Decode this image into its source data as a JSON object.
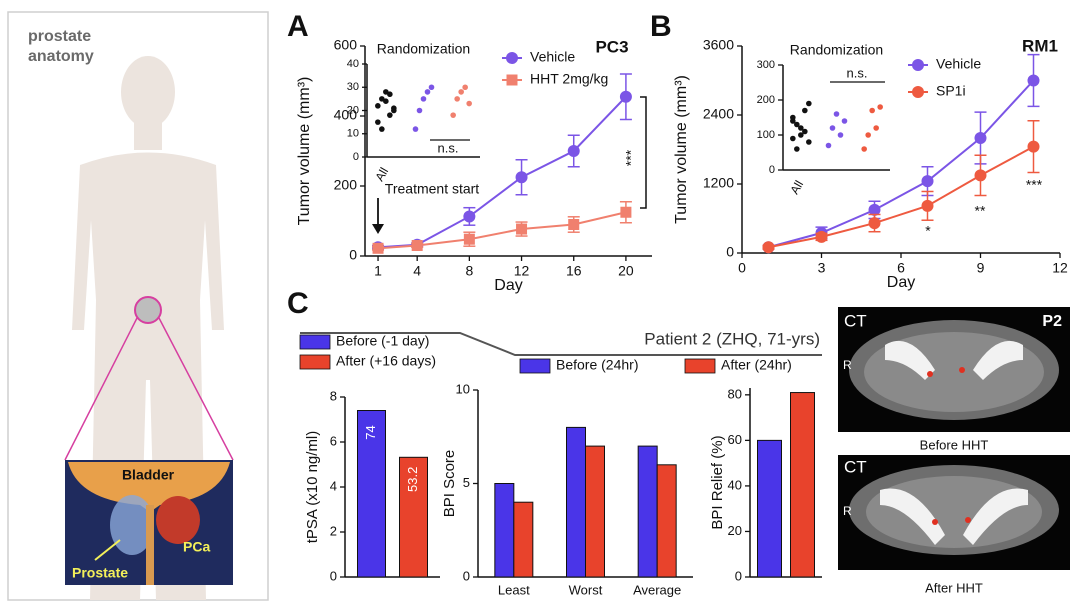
{
  "panel_letters": [
    "A",
    "B",
    "C"
  ],
  "anatomy": {
    "title": "prostate anatomy",
    "labels": [
      "Bladder",
      "Prostate",
      "PCa"
    ]
  },
  "panel_c": {
    "title": "Patient 2 (ZHQ, 71-yrs)"
  },
  "ct": {
    "labels": [
      "CT",
      "P2",
      "R",
      "CT",
      "R"
    ],
    "captions": [
      "Before HHT",
      "After HHT"
    ]
  },
  "chart_data": [
    {
      "type": "line",
      "xlabel": "Day",
      "ylabel": "Tumor volume (mm³)",
      "x": [
        1,
        4,
        8,
        12,
        16,
        20
      ],
      "xlim": [
        0,
        22
      ],
      "xticks": [
        1,
        4,
        8,
        12,
        16,
        20
      ],
      "ylim": [
        0,
        600
      ],
      "yticks": [
        0,
        200,
        400,
        600
      ],
      "series": [
        {
          "name": "Vehicle",
          "color": "#7b55e6",
          "marker": "circle",
          "values": [
            25,
            32,
            113,
            225,
            300,
            455
          ],
          "errors": [
            5,
            5,
            25,
            50,
            45,
            65
          ]
        },
        {
          "name": "HHT 2mg/kg",
          "color": "#f0806e",
          "marker": "square",
          "values": [
            22,
            30,
            48,
            77,
            90,
            125
          ],
          "errors": [
            5,
            5,
            20,
            20,
            22,
            30
          ]
        }
      ],
      "annotations": [
        "PC3",
        "Treatment start",
        "***"
      ]
    },
    {
      "type": "dot",
      "title": "Randomization",
      "categories": [
        "All",
        null,
        null
      ],
      "ylim": [
        0,
        40
      ],
      "yticks": [
        0,
        10,
        20,
        30,
        40
      ],
      "colors": [
        "#111111",
        "#7b55e6",
        "#f0806e"
      ],
      "values": [
        [
          22,
          25,
          28,
          18,
          20,
          15,
          12,
          24,
          27,
          21
        ],
        [
          12,
          20,
          25,
          28,
          30
        ],
        [
          18,
          25,
          28,
          30,
          23
        ]
      ],
      "annotations": [
        "n.s."
      ]
    },
    {
      "type": "line",
      "xlabel": "Day",
      "ylabel": "Tumor volume (mm³)",
      "x": [
        1,
        3,
        5,
        7,
        9,
        11
      ],
      "xlim": [
        0,
        12
      ],
      "xticks": [
        0,
        3,
        6,
        9,
        12
      ],
      "ylim": [
        0,
        3600
      ],
      "yticks": [
        0,
        1200,
        2400,
        3600
      ],
      "series": [
        {
          "name": "Vehicle",
          "color": "#7b55e6",
          "marker": "circle",
          "values": [
            100,
            350,
            750,
            1250,
            2000,
            3000
          ],
          "errors": [
            30,
            100,
            150,
            250,
            450,
            450
          ]
        },
        {
          "name": "SP1i",
          "color": "#ee5a40",
          "marker": "circle",
          "values": [
            100,
            280,
            520,
            820,
            1350,
            1850
          ],
          "errors": [
            30,
            60,
            150,
            250,
            350,
            450
          ]
        }
      ],
      "annotations": [
        "RM1",
        "*",
        "**",
        "***"
      ]
    },
    {
      "type": "dot",
      "title": "Randomization",
      "categories": [
        "All",
        null,
        null
      ],
      "ylim": [
        0,
        300
      ],
      "yticks": [
        0,
        100,
        200,
        300
      ],
      "colors": [
        "#111111",
        "#7b55e6",
        "#ee5a40"
      ],
      "values": [
        [
          140,
          60,
          100,
          170,
          190,
          90,
          130,
          120,
          110,
          80,
          150
        ],
        [
          70,
          120,
          160,
          100,
          140
        ],
        [
          60,
          100,
          170,
          120,
          180
        ]
      ],
      "annotations": [
        "n.s."
      ]
    },
    {
      "type": "bar",
      "ylabel": "tPSA (x10 ng/ml)",
      "ylim": [
        0,
        8
      ],
      "yticks": [
        0,
        2,
        4,
        6,
        8
      ],
      "series": [
        {
          "name": "Before (-1 day)",
          "color": "#4a35e8",
          "values": [
            7.4
          ],
          "value_labels": [
            "74"
          ]
        },
        {
          "name": "After (+16 days)",
          "color": "#e8432c",
          "values": [
            5.32
          ],
          "value_labels": [
            "53.2"
          ]
        }
      ]
    },
    {
      "type": "bar",
      "ylabel": "BPI Score",
      "categories": [
        "Least",
        "Worst",
        "Average"
      ],
      "ylim": [
        0,
        10
      ],
      "yticks": [
        0,
        5,
        10
      ],
      "series": [
        {
          "name": "Before (24hr)",
          "color": "#4a35e8",
          "values": [
            5,
            8,
            7
          ]
        },
        {
          "name": "After (24hr)",
          "color": "#e8432c",
          "values": [
            4,
            7,
            6
          ]
        }
      ]
    },
    {
      "type": "bar",
      "ylabel": "BPI Relief (%)",
      "ylim": [
        0,
        83
      ],
      "yticks": [
        0,
        20,
        40,
        60,
        80
      ],
      "series": [
        {
          "color": "#4a35e8",
          "values": [
            60
          ]
        },
        {
          "color": "#e8432c",
          "values": [
            81
          ]
        }
      ]
    }
  ]
}
